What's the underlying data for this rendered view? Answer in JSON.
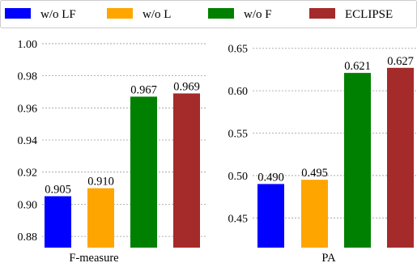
{
  "chart_data": [
    {
      "type": "bar",
      "categories": [
        "w/o LF",
        "w/o L",
        "w/o F",
        "ECLIPSE"
      ],
      "values": [
        0.905,
        0.91,
        0.967,
        0.969
      ],
      "value_labels": [
        "0.905",
        "0.910",
        "0.967",
        "0.969"
      ],
      "colors": [
        "#0000ff",
        "#ffa500",
        "#008000",
        "#a52a2a"
      ],
      "xlabel": "F-measure",
      "ylim": [
        0.873,
        1.005
      ],
      "yticks": [
        "0.88",
        "0.90",
        "0.92",
        "0.94",
        "0.96",
        "0.98",
        "1.00"
      ],
      "ytick_values": [
        0.88,
        0.9,
        0.92,
        0.94,
        0.96,
        0.98,
        1.0
      ],
      "grid": "horizontal, dashed"
    },
    {
      "type": "bar",
      "categories": [
        "w/o LF",
        "w/o L",
        "w/o F",
        "ECLIPSE"
      ],
      "values": [
        0.49,
        0.495,
        0.621,
        0.627
      ],
      "value_labels": [
        "0.490",
        "0.495",
        "0.621",
        "0.627"
      ],
      "colors": [
        "#0000ff",
        "#ffa500",
        "#008000",
        "#a52a2a"
      ],
      "xlabel": "PA",
      "ylim": [
        0.415,
        0.665
      ],
      "yticks": [
        "0.45",
        "0.50",
        "0.55",
        "0.60",
        "0.65"
      ],
      "ytick_values": [
        0.45,
        0.5,
        0.55,
        0.6,
        0.65
      ],
      "grid": "horizontal, dashed"
    }
  ],
  "legend": {
    "placement": "top",
    "items": [
      {
        "label": "w/o LF",
        "color": "#0000ff"
      },
      {
        "label": "w/o L",
        "color": "#ffa500"
      },
      {
        "label": "w/o F",
        "color": "#008000"
      },
      {
        "label": "ECLIPSE",
        "color": "#a52a2a"
      }
    ]
  }
}
